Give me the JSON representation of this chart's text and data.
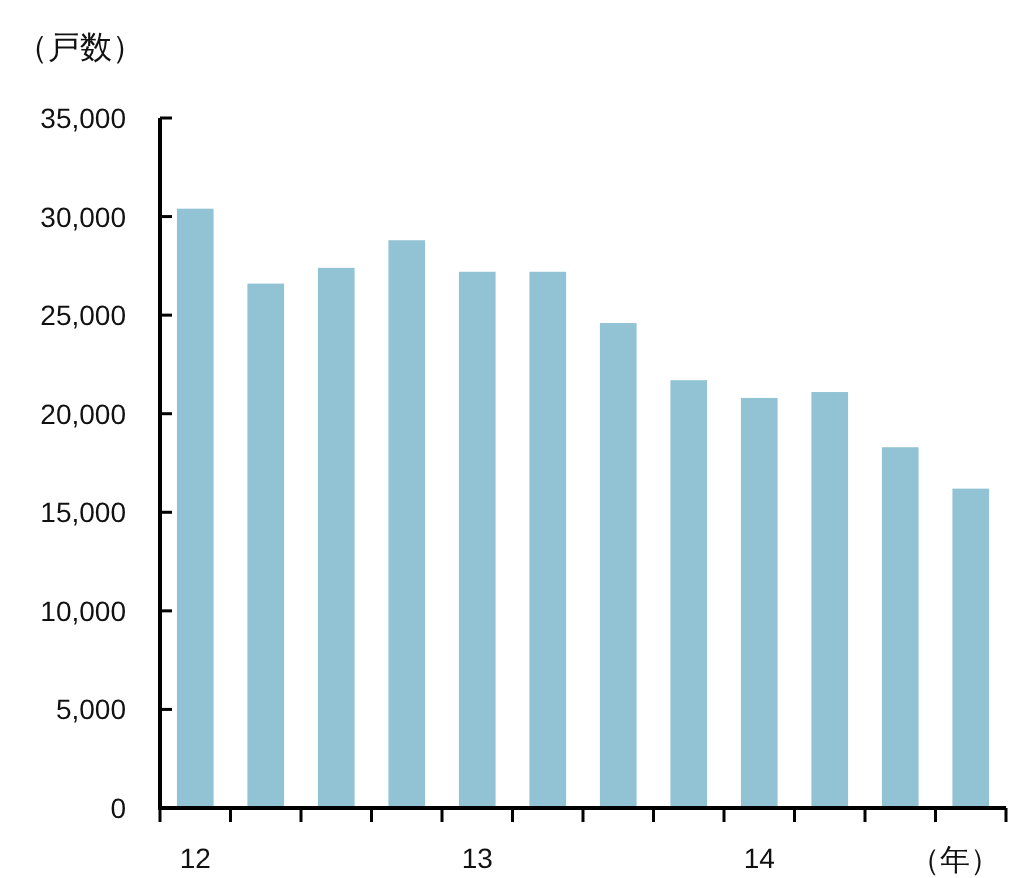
{
  "chart_data": {
    "type": "bar",
    "ylabel": "（戸数）",
    "xlabel": "（年）",
    "categories": [
      "12",
      null,
      null,
      null,
      "13",
      null,
      null,
      null,
      "14",
      null,
      null,
      null
    ],
    "values": [
      30400,
      26600,
      27400,
      28800,
      27200,
      27200,
      24600,
      21700,
      20800,
      21100,
      18300,
      16200
    ],
    "color": "#92c3d4",
    "ylim": [
      0,
      35000
    ],
    "yticks": [
      {
        "value": 0,
        "label": "0"
      },
      {
        "value": 5000,
        "label": "5,000"
      },
      {
        "value": 10000,
        "label": "10,000"
      },
      {
        "value": 15000,
        "label": "15,000"
      },
      {
        "value": 20000,
        "label": "20,000"
      },
      {
        "value": 25000,
        "label": "25,000"
      },
      {
        "value": 30000,
        "label": "30,000"
      },
      {
        "value": 35000,
        "label": "35,000"
      }
    ],
    "grid": false
  }
}
